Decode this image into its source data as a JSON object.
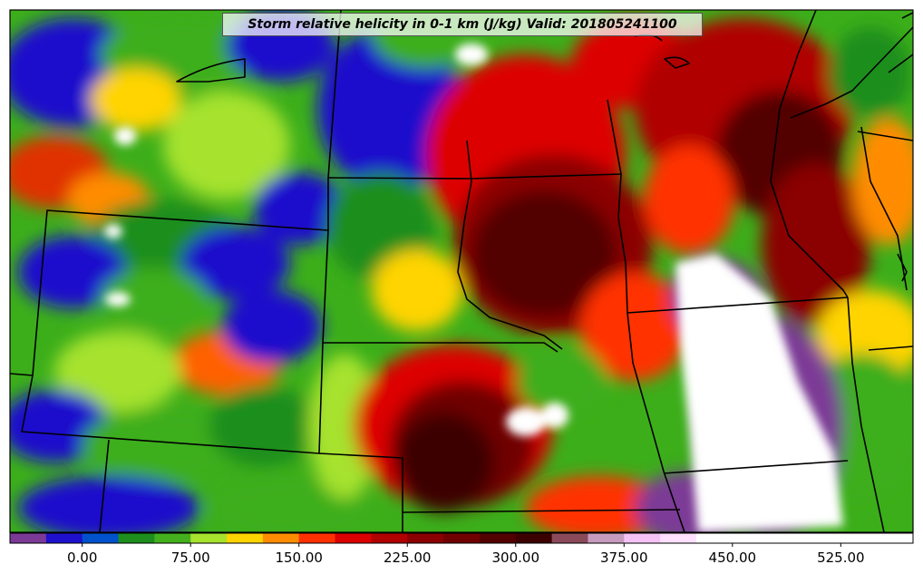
{
  "title": "Storm relative helicity in 0-1 km (J/kg) Valid: 201805241100",
  "chart_data": {
    "type": "heatmap",
    "title": "Storm relative helicity in 0-1 km (J/kg) Valid: 201805241100",
    "colorbar": {
      "range": [
        -50,
        575
      ],
      "step": 25,
      "colors": [
        "#7b3a96",
        "#1e10cc",
        "#0052cc",
        "#1d8e1d",
        "#44b01e",
        "#a6e22e",
        "#ffd400",
        "#ff8c00",
        "#ff3000",
        "#dd0000",
        "#b00000",
        "#8b0000",
        "#700000",
        "#520000",
        "#3d0000",
        "#8b4a5a",
        "#c79bbd",
        "#f5c2f5",
        "#ffe0ff",
        "#ffffff",
        "#ffffff"
      ],
      "ticks": [
        {
          "value": 0,
          "label": "0.00"
        },
        {
          "value": 75,
          "label": "75.00"
        },
        {
          "value": 150,
          "label": "150.00"
        },
        {
          "value": 225,
          "label": "225.00"
        },
        {
          "value": 300,
          "label": "300.00"
        },
        {
          "value": 375,
          "label": "375.00"
        },
        {
          "value": 450,
          "label": "450.00"
        },
        {
          "value": 525,
          "label": "525.00"
        }
      ]
    }
  }
}
